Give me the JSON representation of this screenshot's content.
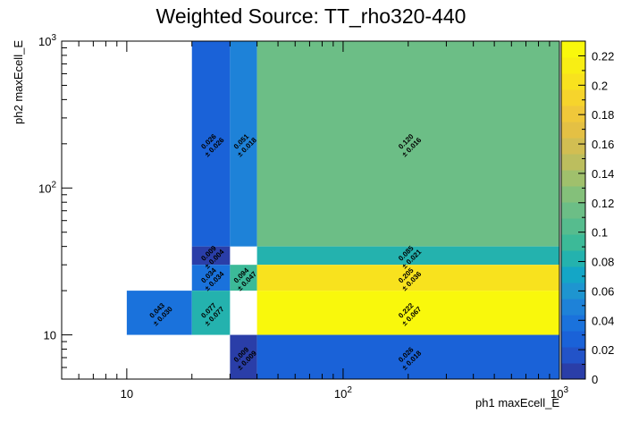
{
  "chart_data": {
    "type": "heatmap",
    "title": "Weighted Source: TT_rho320-440",
    "xlabel": "ph1 maxEcell_E",
    "ylabel": "ph2 maxEcell_E",
    "x_scale": "log",
    "y_scale": "log",
    "xlim": [
      5,
      1000
    ],
    "ylim": [
      5,
      1000
    ],
    "x_tick_labels": [
      {
        "value": 10,
        "base": "10",
        "exp": ""
      },
      {
        "value": 100,
        "base": "10",
        "exp": "2"
      },
      {
        "value": 1000,
        "base": "10",
        "exp": "3"
      }
    ],
    "y_tick_labels": [
      {
        "value": 10,
        "base": "10",
        "exp": ""
      },
      {
        "value": 100,
        "base": "10",
        "exp": "2"
      },
      {
        "value": 1000,
        "base": "10",
        "exp": "3"
      }
    ],
    "zlim": [
      0,
      0.23
    ],
    "colorbar_ticks": [
      "0",
      "0.02",
      "0.04",
      "0.06",
      "0.08",
      "0.1",
      "0.12",
      "0.14",
      "0.16",
      "0.18",
      "0.2",
      "0.22"
    ],
    "colorbar_tick_values": [
      0,
      0.02,
      0.04,
      0.06,
      0.08,
      0.1,
      0.12,
      0.14,
      0.16,
      0.18,
      0.2,
      0.22
    ],
    "cells": [
      {
        "x0": 20,
        "x1": 30,
        "y0": 40,
        "y1": 1000,
        "value": 0.026,
        "label": "0.026",
        "error": "± 0.026"
      },
      {
        "x0": 30,
        "x1": 40,
        "y0": 40,
        "y1": 1000,
        "value": 0.051,
        "label": "0.051",
        "error": "± 0.018"
      },
      {
        "x0": 40,
        "x1": 1000,
        "y0": 40,
        "y1": 1000,
        "value": 0.12,
        "label": "0.120",
        "error": "± 0.016"
      },
      {
        "x0": 20,
        "x1": 30,
        "y0": 30,
        "y1": 40,
        "value": 0.009,
        "label": "0.009",
        "error": "± 0.004"
      },
      {
        "x0": 40,
        "x1": 1000,
        "y0": 30,
        "y1": 40,
        "value": 0.085,
        "label": "0.085",
        "error": "± 0.021"
      },
      {
        "x0": 20,
        "x1": 30,
        "y0": 20,
        "y1": 30,
        "value": 0.034,
        "label": "0.034",
        "error": "± 0.034"
      },
      {
        "x0": 30,
        "x1": 40,
        "y0": 20,
        "y1": 30,
        "value": 0.094,
        "label": "0.094",
        "error": "± 0.047"
      },
      {
        "x0": 40,
        "x1": 1000,
        "y0": 20,
        "y1": 30,
        "value": 0.205,
        "label": "0.205",
        "error": "± 0.036"
      },
      {
        "x0": 10,
        "x1": 20,
        "y0": 10,
        "y1": 20,
        "value": 0.043,
        "label": "0.043",
        "error": "± 0.030"
      },
      {
        "x0": 20,
        "x1": 30,
        "y0": 10,
        "y1": 20,
        "value": 0.077,
        "label": "0.077",
        "error": "± 0.077"
      },
      {
        "x0": 40,
        "x1": 1000,
        "y0": 10,
        "y1": 20,
        "value": 0.222,
        "label": "0.222",
        "error": "± 0.067"
      },
      {
        "x0": 30,
        "x1": 40,
        "y0": 5,
        "y1": 10,
        "value": 0.009,
        "label": "0.009",
        "error": "± 0.009"
      },
      {
        "x0": 40,
        "x1": 1000,
        "y0": 5,
        "y1": 10,
        "value": 0.026,
        "label": "0.026",
        "error": "± 0.018"
      }
    ],
    "palette": [
      "#2a3ea8",
      "#2253c8",
      "#1a62d8",
      "#1a72dc",
      "#1e82d8",
      "#1e95d0",
      "#14a6c6",
      "#24b2ae",
      "#3cba98",
      "#56bc8e",
      "#6cbe86",
      "#84c07a",
      "#a0c06c",
      "#bcbe5e",
      "#d2be52",
      "#e4c044",
      "#f0c83a",
      "#f6d42c",
      "#f8e21e",
      "#f8ee14",
      "#f9f80c"
    ],
    "grid": false,
    "colorbar": "right"
  }
}
